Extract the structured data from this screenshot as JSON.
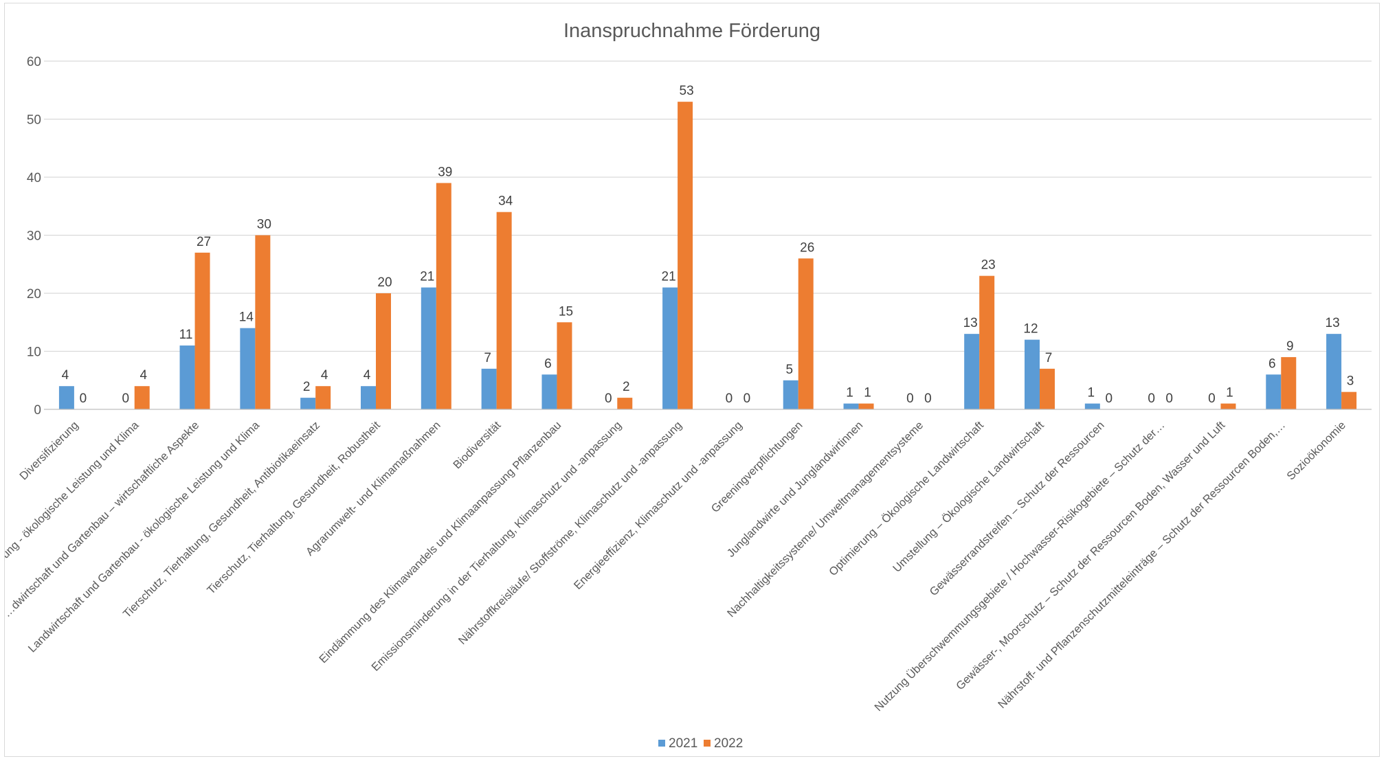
{
  "chart_data": {
    "type": "bar",
    "title": "Inanspruchnahme Förderung",
    "xlabel": "",
    "ylabel": "",
    "ylim": [
      0,
      60
    ],
    "yticks": [
      0,
      10,
      20,
      30,
      40,
      50,
      60
    ],
    "grid": true,
    "legend": "bottom",
    "categories": [
      "Diversifizierung",
      "…ung - ökologische Leistung und Klima",
      "…dwirtschaft und Gartenbau – wirtschaftliche Aspekte",
      "Landwirtschaft und Gartenbau - ökologische Leistung und Klima",
      "Tierschutz, Tierhaltung, Gesundheit, Antibiotikaeinsatz",
      "Tierschutz, Tierhaltung, Gesundheit, Robustheit",
      "Agrarumwelt- und Klimamaßnahmen",
      "Biodiversität",
      "Eindämmung des Klimawandels und Klimaanpassung Pflanzenbau",
      "Emissionsminderung in der Tierhaltung, Klimaschutz und -anpassung",
      "Nährstoffkreisläufe/ Stoffströme, Klimaschutz und -anpassung",
      "Energieeffizienz, Klimaschutz und -anpassung",
      "Greeningverpflichtungen",
      "Junglandwirte und Junglandwirtinnen",
      "Nachhaltigkeitssysteme/ Umweltmanagementsysteme",
      "Optimierung – Ökologische Landwirtschaft",
      "Umstellung – Ökologische Landwirtschaft",
      "Gewässerrandstreifen – Schutz der Ressourcen",
      "Nutzung Überschwemmungsgebiete / Hochwasser-Risikogebiete – Schutz der…",
      "Gewässer-, Moorschutz – Schutz der Ressourcen Boden, Wasser und Luft",
      "Nährstoff- und Pflanzenschutzmitteleinträge – Schutz der Ressourcen Boden,…",
      "Sozioökonomie"
    ],
    "series": [
      {
        "name": "2021",
        "color": "#5b9bd5",
        "values": [
          4,
          0,
          11,
          14,
          2,
          4,
          21,
          7,
          6,
          0,
          21,
          0,
          5,
          1,
          0,
          13,
          12,
          1,
          0,
          0,
          6,
          13
        ]
      },
      {
        "name": "2022",
        "color": "#ed7d31",
        "values": [
          0,
          4,
          27,
          30,
          4,
          20,
          39,
          34,
          15,
          2,
          53,
          0,
          26,
          1,
          0,
          23,
          7,
          0,
          0,
          1,
          9,
          3
        ]
      }
    ]
  }
}
